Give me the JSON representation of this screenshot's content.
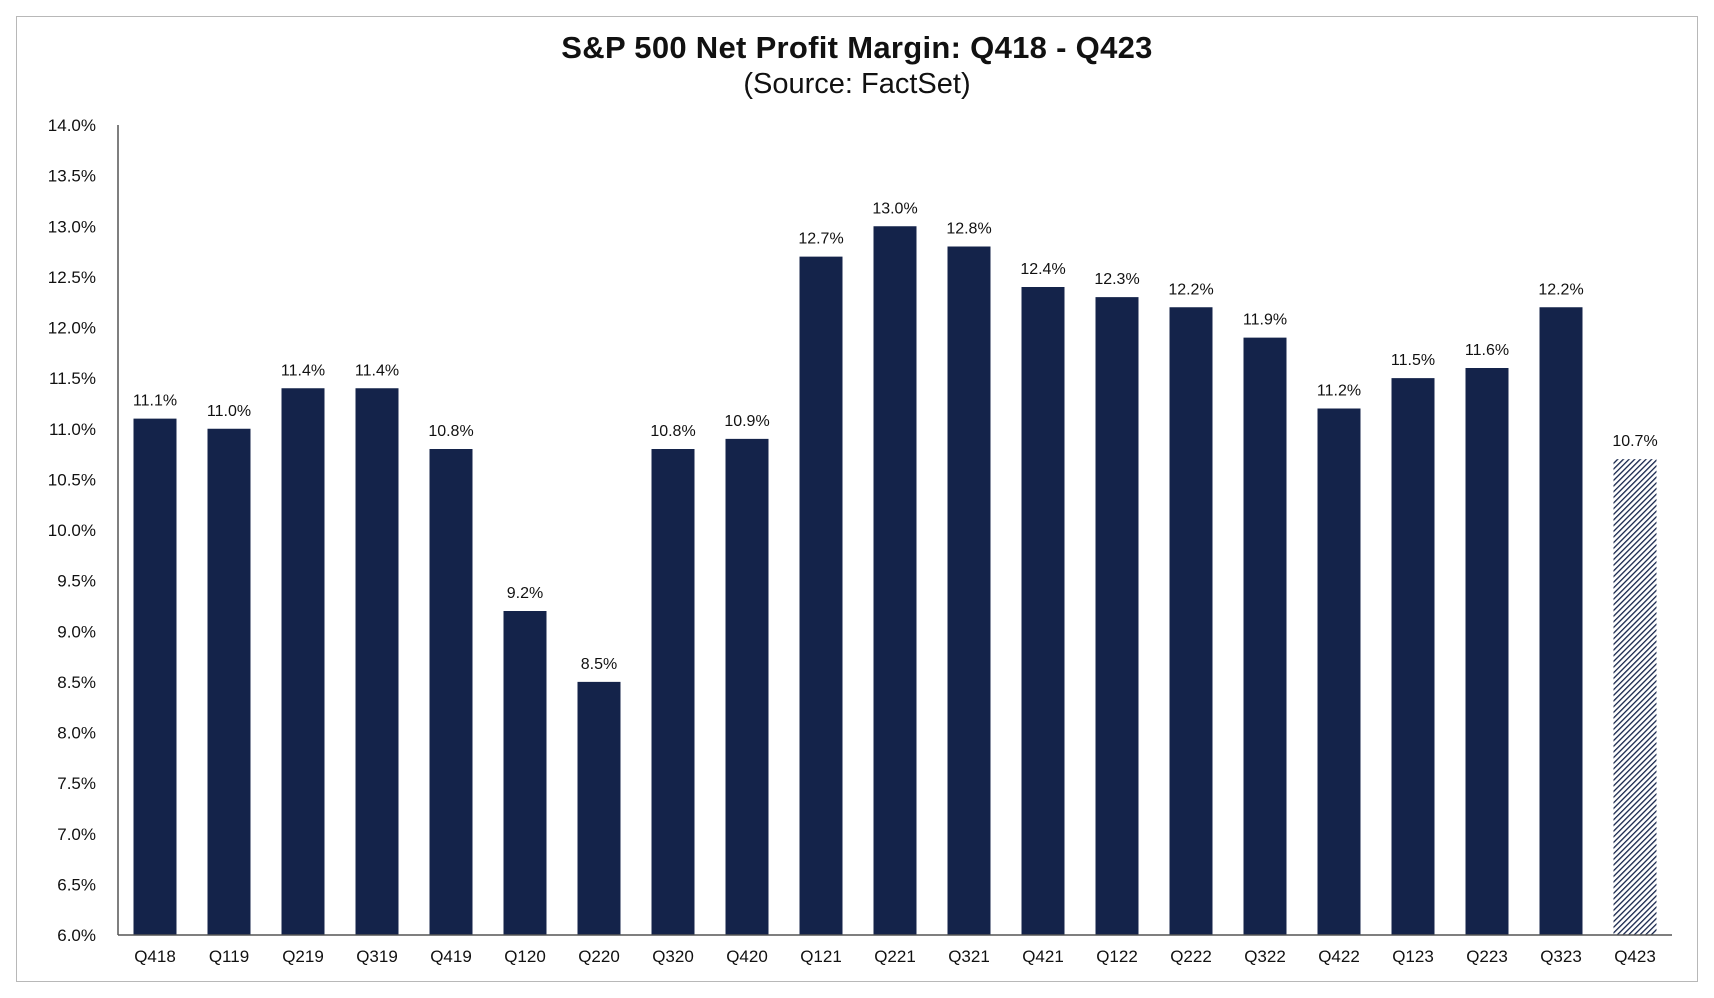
{
  "chart_data": {
    "type": "bar",
    "title": "S&P 500 Net Profit Margin: Q418 - Q423",
    "subtitle": "(Source: FactSet)",
    "xlabel": "",
    "ylabel": "",
    "ylim": [
      6.0,
      14.0
    ],
    "ytick_step": 0.5,
    "ytick_labels": [
      "6.0%",
      "6.5%",
      "7.0%",
      "7.5%",
      "8.0%",
      "8.5%",
      "9.0%",
      "9.5%",
      "10.0%",
      "10.5%",
      "11.0%",
      "11.5%",
      "12.0%",
      "12.5%",
      "13.0%",
      "13.5%",
      "14.0%"
    ],
    "categories": [
      "Q418",
      "Q119",
      "Q219",
      "Q319",
      "Q419",
      "Q120",
      "Q220",
      "Q320",
      "Q420",
      "Q121",
      "Q221",
      "Q321",
      "Q421",
      "Q122",
      "Q222",
      "Q322",
      "Q422",
      "Q123",
      "Q223",
      "Q323",
      "Q423"
    ],
    "values": [
      11.1,
      11.0,
      11.4,
      11.4,
      10.8,
      9.2,
      8.5,
      10.8,
      10.9,
      12.7,
      13.0,
      12.8,
      12.4,
      12.3,
      12.2,
      11.9,
      11.2,
      11.5,
      11.6,
      12.2,
      10.7
    ],
    "value_labels": [
      "11.1%",
      "11.0%",
      "11.4%",
      "11.4%",
      "10.8%",
      "9.2%",
      "8.5%",
      "10.8%",
      "10.9%",
      "12.7%",
      "13.0%",
      "12.8%",
      "12.4%",
      "12.3%",
      "12.2%",
      "11.9%",
      "11.2%",
      "11.5%",
      "11.6%",
      "12.2%",
      "10.7%"
    ],
    "estimate_flags": [
      false,
      false,
      false,
      false,
      false,
      false,
      false,
      false,
      false,
      false,
      false,
      false,
      false,
      false,
      false,
      false,
      false,
      false,
      false,
      false,
      true
    ],
    "grid": false,
    "legend": "none",
    "colors": {
      "bar": "#14234a",
      "estimate_bar": "#5a6478",
      "axis": "#555555"
    }
  }
}
